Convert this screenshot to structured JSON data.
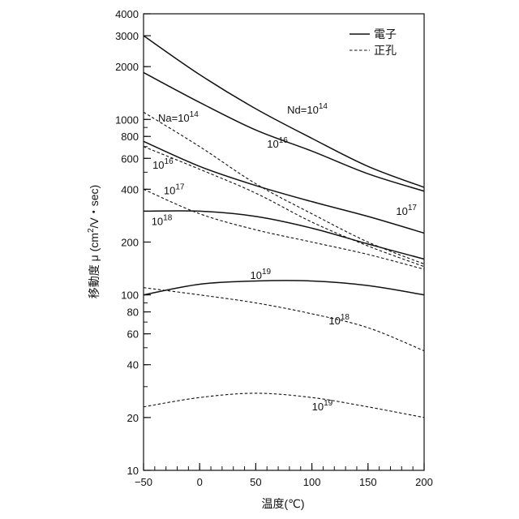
{
  "chart_data": {
    "type": "line",
    "title": "",
    "xlabel": "温度(℃)",
    "ylabel": "移動度 μ (cm²/V・sec)",
    "ylabel_parts": {
      "main": "移動度 μ (cm",
      "sup": "2",
      "rest": "/V・sec)"
    },
    "xlim": [
      -50,
      200
    ],
    "ylim": [
      10,
      4000
    ],
    "yscale": "log",
    "grid": false,
    "legend_position": "top-right",
    "x_ticks": [
      -50,
      0,
      50,
      100,
      150,
      200
    ],
    "x_tick_labels": [
      "−50",
      "0",
      "50",
      "100",
      "150",
      "200"
    ],
    "y_ticks": [
      10,
      20,
      40,
      60,
      80,
      100,
      200,
      400,
      600,
      800,
      1000,
      2000,
      3000,
      4000
    ],
    "y_tick_labels": [
      "10",
      "20",
      "40",
      "60",
      "80",
      "100",
      "200",
      "400",
      "600",
      "800",
      "1000",
      "2000",
      "3000",
      "4000"
    ],
    "legend": [
      {
        "label": "電子",
        "style": "solid"
      },
      {
        "label": "正孔",
        "style": "dashed"
      }
    ],
    "series": [
      {
        "carrier": "electron",
        "style": "solid",
        "doping": "1e14",
        "x": [
          -50,
          0,
          50,
          100,
          150,
          200
        ],
        "y": [
          3000,
          1800,
          1150,
          780,
          540,
          410
        ]
      },
      {
        "carrier": "electron",
        "style": "solid",
        "doping": "1e16",
        "x": [
          -50,
          0,
          50,
          100,
          150,
          200
        ],
        "y": [
          1850,
          1250,
          870,
          660,
          490,
          390
        ]
      },
      {
        "carrier": "electron",
        "style": "solid",
        "doping": "1e17",
        "x": [
          -50,
          0,
          50,
          100,
          150,
          200
        ],
        "y": [
          750,
          540,
          420,
          340,
          280,
          225
        ]
      },
      {
        "carrier": "electron",
        "style": "solid",
        "doping": "1e18",
        "x": [
          -50,
          0,
          50,
          100,
          150,
          200
        ],
        "y": [
          300,
          300,
          280,
          240,
          195,
          160
        ]
      },
      {
        "carrier": "electron",
        "style": "solid",
        "doping": "1e19",
        "x": [
          -50,
          0,
          50,
          100,
          150,
          200
        ],
        "y": [
          100,
          115,
          120,
          120,
          113,
          100
        ]
      },
      {
        "carrier": "hole",
        "style": "dashed",
        "doping": "1e14",
        "x": [
          -50,
          0,
          50,
          100,
          150,
          200
        ],
        "y": [
          1100,
          700,
          430,
          290,
          200,
          150
        ]
      },
      {
        "carrier": "hole",
        "style": "dashed",
        "doping": "1e16",
        "x": [
          -50,
          0,
          50,
          100,
          150,
          200
        ],
        "y": [
          700,
          520,
          380,
          260,
          190,
          145
        ]
      },
      {
        "carrier": "hole",
        "style": "dashed",
        "doping": "1e17",
        "x": [
          -50,
          0,
          50,
          100,
          150,
          200
        ],
        "y": [
          400,
          290,
          235,
          200,
          170,
          140
        ]
      },
      {
        "carrier": "hole",
        "style": "dashed",
        "doping": "1e18",
        "x": [
          -50,
          0,
          50,
          100,
          150,
          200
        ],
        "y": [
          110,
          100,
          90,
          78,
          65,
          48
        ]
      },
      {
        "carrier": "hole",
        "style": "dashed",
        "doping": "1e19",
        "x": [
          -50,
          0,
          50,
          100,
          150,
          200
        ],
        "y": [
          23,
          26,
          27.5,
          26,
          23,
          20
        ]
      }
    ],
    "annotations": [
      {
        "base": "Nd=10",
        "exp": "14",
        "x": 78,
        "y": 1080
      },
      {
        "base": "Na=10",
        "exp": "14",
        "x": -37,
        "y": 970
      },
      {
        "base": "10",
        "exp": "16",
        "x": 60,
        "y": 690
      },
      {
        "base": "10",
        "exp": "16",
        "x": -42,
        "y": 525
      },
      {
        "base": "10",
        "exp": "17",
        "x": -32,
        "y": 375
      },
      {
        "base": "10",
        "exp": "17",
        "x": 175,
        "y": 285
      },
      {
        "base": "10",
        "exp": "18",
        "x": -43,
        "y": 250
      },
      {
        "base": "10",
        "exp": "19",
        "x": 45,
        "y": 123
      },
      {
        "base": "10",
        "exp": "18",
        "x": 115,
        "y": 68
      },
      {
        "base": "10",
        "exp": "19",
        "x": 100,
        "y": 22
      }
    ]
  }
}
